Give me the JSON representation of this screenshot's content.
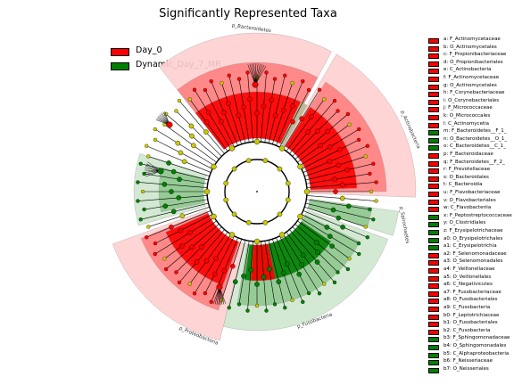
{
  "chart_data": {
    "type": "cladogram",
    "title": "Significantly Represented Taxa",
    "legend": [
      {
        "name": "Day_0",
        "color": "#ff0000"
      },
      {
        "name": "Dynamic_Day_7_MR",
        "color": "#008000"
      }
    ],
    "colors": {
      "Day_0": "#ff0000",
      "Dynamic_Day_7_MR": "#008000",
      "neutral_node": "#c8c800",
      "Day_0_light": "#ffd0d0",
      "Day_0_mid": "#ff8080",
      "Dynamic_light": "#cfe7cf",
      "Dynamic_mid": "#90c890",
      "olive": "#b8b890"
    },
    "clade_labels": [
      {
        "text": "p_Bacteroidetes",
        "group": "Day_0"
      },
      {
        "text": "p_Actinobacteria",
        "group": "Day_0"
      },
      {
        "text": "p_Spirochaetes",
        "group": "Dynamic_Day_7_MR"
      },
      {
        "text": "p_Fusobacteria",
        "group": "Dynamic_Day_7_MR"
      },
      {
        "text": "p_Proteobacteria",
        "group": "Day_0"
      }
    ],
    "taxa": [
      {
        "label": "a: F_Actinomycetaceae",
        "group": "Day_0"
      },
      {
        "label": "b: O_Actinomycetales",
        "group": "Day_0"
      },
      {
        "label": "c: F_Propionibacteriaceae",
        "group": "Day_0"
      },
      {
        "label": "d: O_Propionibacteriales",
        "group": "Day_0"
      },
      {
        "label": "e: C_Actinobacteria",
        "group": "Day_0"
      },
      {
        "label": "f: F_Actinomycetaceae",
        "group": "Day_0"
      },
      {
        "label": "g: O_Actinomycetales",
        "group": "Day_0"
      },
      {
        "label": "h: F_Corynebacteriaceae",
        "group": "Day_0"
      },
      {
        "label": "i: O_Corynebacteriales",
        "group": "Day_0"
      },
      {
        "label": "j: F_Micrococcaceae",
        "group": "Day_0"
      },
      {
        "label": "k: O_Micrococcales",
        "group": "Day_0"
      },
      {
        "label": "l: C_Actinomycetia",
        "group": "Day_0"
      },
      {
        "label": "m: F_Bacteroidetes__F_1_",
        "group": "Dynamic_Day_7_MR"
      },
      {
        "label": "n: O_Bacteroidetes__O_1_",
        "group": "Dynamic_Day_7_MR"
      },
      {
        "label": "o: C_Bacteroidetes__C_1_",
        "group": "Dynamic_Day_7_MR"
      },
      {
        "label": "p: F_Bacteroidaceae",
        "group": "Day_0"
      },
      {
        "label": "q: F_Bacteroidetes__F_2_",
        "group": "Day_0"
      },
      {
        "label": "r: F_Prevotellaceae",
        "group": "Day_0"
      },
      {
        "label": "s: O_Bacteroidales",
        "group": "Day_0"
      },
      {
        "label": "t: C_Bacteroidia",
        "group": "Day_0"
      },
      {
        "label": "u: F_Flavobacteriaceae",
        "group": "Day_0"
      },
      {
        "label": "v: O_Flavobacteriales",
        "group": "Day_0"
      },
      {
        "label": "w: C_Flavobacteriia",
        "group": "Day_0"
      },
      {
        "label": "x: F_Peptostreptococcaceae",
        "group": "Dynamic_Day_7_MR"
      },
      {
        "label": "y: O_Clostridiales",
        "group": "Dynamic_Day_7_MR"
      },
      {
        "label": "z: F_Erysipelotrichaceae",
        "group": "Dynamic_Day_7_MR"
      },
      {
        "label": "a0: O_Erysipelotrichales",
        "group": "Dynamic_Day_7_MR"
      },
      {
        "label": "a1: C_Erysipelotrichia",
        "group": "Dynamic_Day_7_MR"
      },
      {
        "label": "a2: F_Selenomonadaceae",
        "group": "Day_0"
      },
      {
        "label": "a3: O_Selenomonadales",
        "group": "Day_0"
      },
      {
        "label": "a4: F_Veillonellaceae",
        "group": "Day_0"
      },
      {
        "label": "a5: O_Veillonellales",
        "group": "Day_0"
      },
      {
        "label": "a6: C_Negativicutes",
        "group": "Day_0"
      },
      {
        "label": "a7: F_Fusobacteriaceae",
        "group": "Day_0"
      },
      {
        "label": "a8: O_Fusobacteriales",
        "group": "Day_0"
      },
      {
        "label": "a9: C_Fusobacteria",
        "group": "Day_0"
      },
      {
        "label": "b0: F_Leptotrichiaceae",
        "group": "Day_0"
      },
      {
        "label": "b1: O_Fusobacteriales",
        "group": "Day_0"
      },
      {
        "label": "b2: C_Fusobacteria",
        "group": "Day_0"
      },
      {
        "label": "b3: F_Sphingomonadaceae",
        "group": "Dynamic_Day_7_MR"
      },
      {
        "label": "b4: O_Sphingomonadales",
        "group": "Dynamic_Day_7_MR"
      },
      {
        "label": "b5: C_Alphaproteobacteria",
        "group": "Dynamic_Day_7_MR"
      },
      {
        "label": "b6: F_Neisseriaceae",
        "group": "Dynamic_Day_7_MR"
      },
      {
        "label": "b7: O_Neisseriales",
        "group": "Dynamic_Day_7_MR"
      }
    ]
  }
}
